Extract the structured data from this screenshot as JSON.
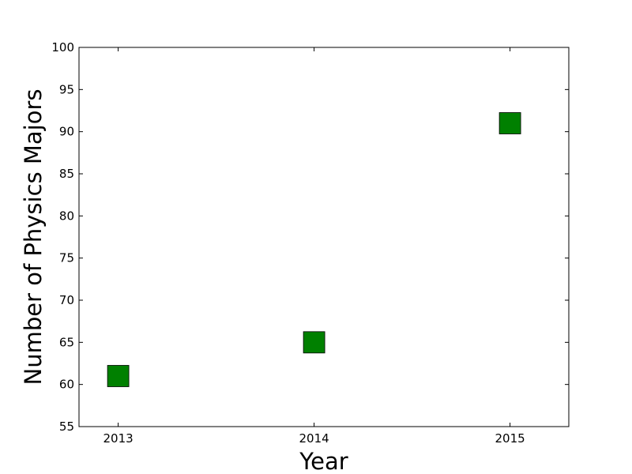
{
  "chart_data": {
    "type": "scatter",
    "title": "",
    "xlabel": "Year",
    "ylabel": "Number of Physics Majors",
    "x": [
      2013,
      2014,
      2015
    ],
    "y": [
      61,
      65,
      91
    ],
    "xticks": [
      "2013",
      "2014",
      "2015"
    ],
    "yticks": [
      "55",
      "60",
      "65",
      "70",
      "75",
      "80",
      "85",
      "90",
      "95",
      "100"
    ],
    "xlim": [
      2012.8,
      2015.3
    ],
    "ylim": [
      55,
      100
    ],
    "marker": "square",
    "marker_color": "#008000",
    "grid": false,
    "legend": "none"
  }
}
